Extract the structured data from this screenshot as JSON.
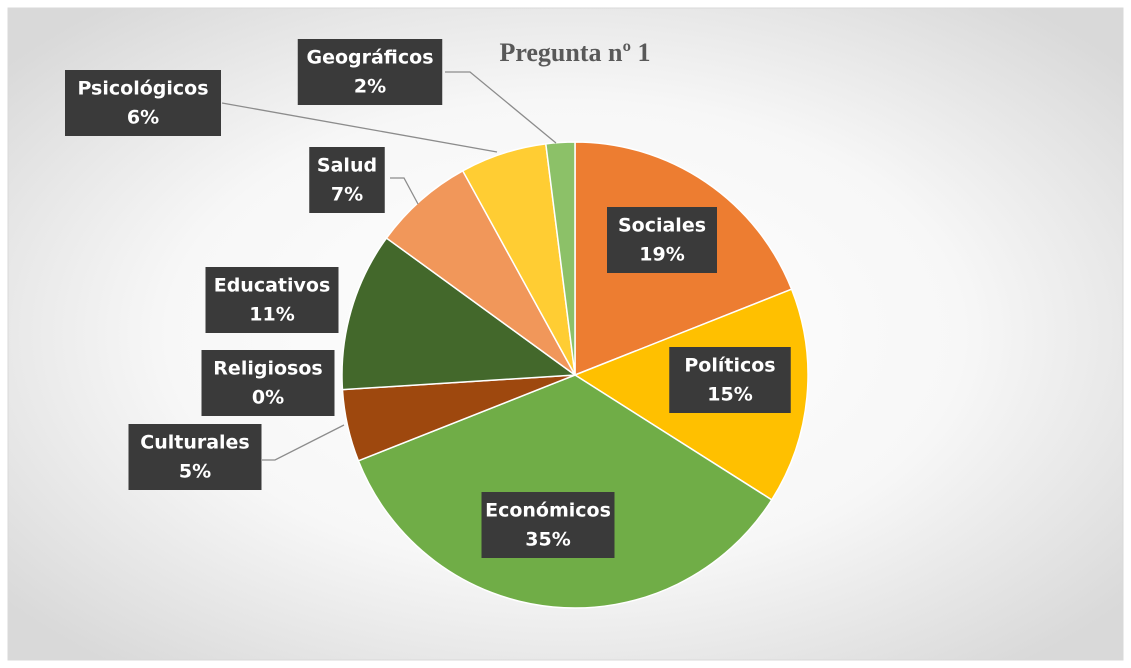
{
  "chart_data": {
    "type": "pie",
    "title": "Pregunta nº 1",
    "categories": [
      "Sociales",
      "Políticos",
      "Económicos",
      "Culturales",
      "Religiosos",
      "Educativos",
      "Salud",
      "Psicológicos",
      "Geográficos"
    ],
    "values": [
      19,
      15,
      35,
      5,
      0,
      11,
      7,
      6,
      2
    ],
    "value_labels": [
      "19%",
      "15%",
      "35%",
      "5%",
      "0%",
      "11%",
      "7%",
      "6%",
      "2%"
    ],
    "colors": [
      "#ED7D31",
      "#FFC000",
      "#70AD47",
      "#9E480E",
      "#997300",
      "#43682B",
      "#F1975A",
      "#FFCD33",
      "#8CC168"
    ]
  }
}
